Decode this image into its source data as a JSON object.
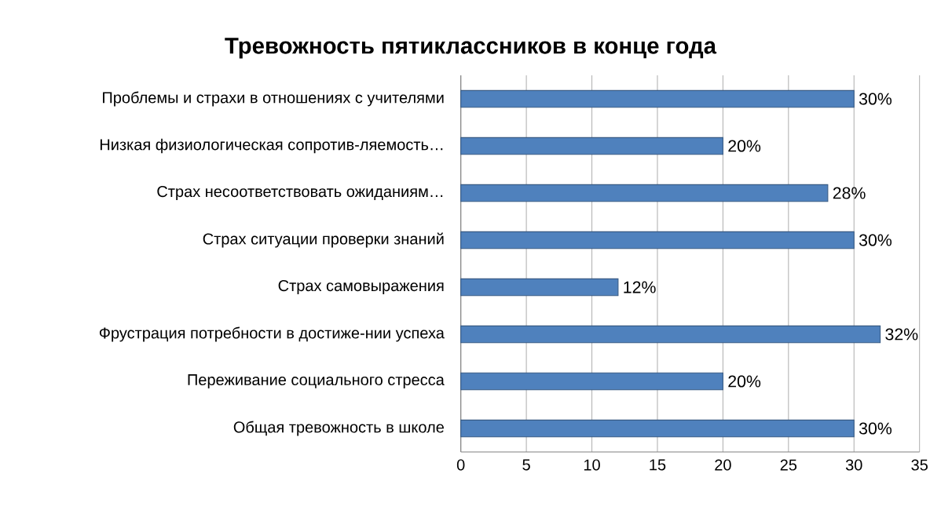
{
  "chart_data": {
    "type": "bar",
    "orientation": "horizontal",
    "title": "Тревожность пятиклассников в конце года",
    "categories": [
      "Проблемы и страхи в отношениях с учителями",
      "Низкая физиологическая сопротив-ляемость…",
      "Страх несоответствовать ожиданиям…",
      "Страх ситуации проверки знаний",
      "Страх самовыражения",
      "Фрустрация потребности в достиже-нии успеха",
      "Переживание социального стресса",
      "Общая тревожность в школе"
    ],
    "values": [
      30,
      20,
      28,
      30,
      12,
      32,
      20,
      30
    ],
    "value_labels": [
      "30%",
      "20%",
      "28%",
      "30%",
      "12%",
      "32%",
      "20%",
      "30%"
    ],
    "color": "#4f81bd",
    "xlim": [
      0,
      35
    ],
    "xticks": [
      0,
      5,
      10,
      15,
      20,
      25,
      30,
      35
    ],
    "grid": "x"
  }
}
